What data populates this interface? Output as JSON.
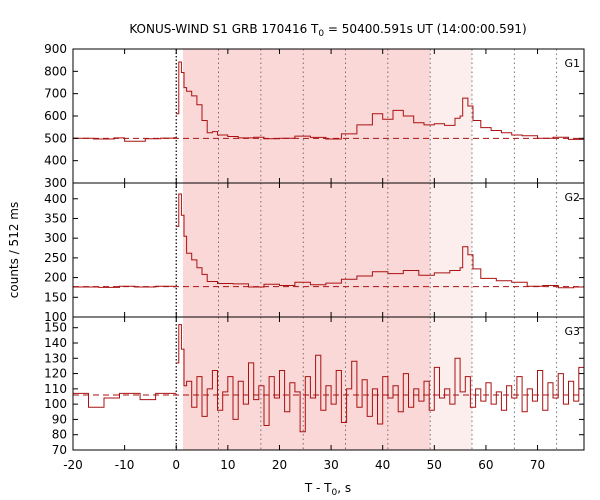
{
  "chart_data": {
    "type": "line",
    "title": {
      "prefix": "KONUS-WIND S1 GRB 170416 T",
      "sub": "0",
      "suffix": " = 50400.591s UT (14:00:00.591)"
    },
    "xlabel": {
      "prefix": "T - T",
      "sub": "0",
      "suffix": ", s"
    },
    "ylabel": "counts / 512 ms",
    "xlim": [
      -20,
      79
    ],
    "x_ticks": [
      -20,
      -10,
      0,
      10,
      20,
      30,
      40,
      50,
      60,
      70
    ],
    "t_zero": 0,
    "dotted_lines_x": [
      0,
      8.2,
      16.4,
      24.6,
      32.8,
      41.0,
      49.2,
      57.3,
      65.5,
      73.7
    ],
    "shaded_regions": [
      {
        "x0": 1.3,
        "x1": 49.2,
        "color": "#fbd8d8"
      },
      {
        "x0": 49.2,
        "x1": 57.3,
        "color": "#fdeeee"
      }
    ],
    "line_color": "#aa1111",
    "panels": [
      {
        "label": "G1",
        "ylim": [
          300,
          900
        ],
        "y_ticks": [
          300,
          400,
          500,
          600,
          700,
          800,
          900
        ],
        "background": 500,
        "pre_trigger": [
          [
            -20,
            500
          ],
          [
            -16,
            497
          ],
          [
            -12,
            502
          ],
          [
            -10,
            487
          ],
          [
            -6,
            498
          ],
          [
            -3,
            501
          ],
          [
            -0.5,
            503
          ]
        ],
        "series": [
          [
            0,
            610
          ],
          [
            0.5,
            842
          ],
          [
            1,
            795
          ],
          [
            1.5,
            727
          ],
          [
            2,
            711
          ],
          [
            3,
            690
          ],
          [
            4,
            650
          ],
          [
            5,
            580
          ],
          [
            6,
            525
          ],
          [
            7,
            530
          ],
          [
            8,
            515
          ],
          [
            10,
            508
          ],
          [
            12,
            502
          ],
          [
            15,
            505
          ],
          [
            17,
            498
          ],
          [
            20,
            500
          ],
          [
            23,
            510
          ],
          [
            26,
            504
          ],
          [
            29,
            497
          ],
          [
            32,
            520
          ],
          [
            35,
            560
          ],
          [
            38,
            610
          ],
          [
            40,
            585
          ],
          [
            42,
            625
          ],
          [
            44,
            600
          ],
          [
            46,
            570
          ],
          [
            48,
            560
          ],
          [
            50,
            565
          ],
          [
            52,
            558
          ],
          [
            54,
            590
          ],
          [
            55,
            600
          ],
          [
            55.5,
            680
          ],
          [
            56.5,
            645
          ],
          [
            57.5,
            580
          ],
          [
            59,
            548
          ],
          [
            61,
            535
          ],
          [
            63,
            525
          ],
          [
            65,
            515
          ],
          [
            67,
            512
          ],
          [
            70,
            500
          ],
          [
            73,
            505
          ],
          [
            76,
            495
          ],
          [
            79,
            490
          ]
        ]
      },
      {
        "label": "G2",
        "ylim": [
          100,
          440
        ],
        "y_ticks": [
          100,
          150,
          200,
          250,
          300,
          350,
          400
        ],
        "background": 177,
        "pre_trigger": [
          [
            -20,
            176
          ],
          [
            -15,
            175
          ],
          [
            -11,
            178
          ],
          [
            -8,
            176
          ],
          [
            -4,
            178
          ],
          [
            -0.5,
            177
          ]
        ],
        "series": [
          [
            0,
            330
          ],
          [
            0.5,
            412
          ],
          [
            1,
            358
          ],
          [
            1.5,
            305
          ],
          [
            2,
            262
          ],
          [
            3,
            245
          ],
          [
            4,
            225
          ],
          [
            5,
            208
          ],
          [
            6,
            190
          ],
          [
            8,
            185
          ],
          [
            11,
            184
          ],
          [
            14,
            176
          ],
          [
            17,
            183
          ],
          [
            20,
            180
          ],
          [
            23,
            188
          ],
          [
            26,
            182
          ],
          [
            29,
            186
          ],
          [
            32,
            196
          ],
          [
            35,
            204
          ],
          [
            38,
            215
          ],
          [
            41,
            210
          ],
          [
            44,
            218
          ],
          [
            47,
            206
          ],
          [
            50,
            212
          ],
          [
            53,
            218
          ],
          [
            55,
            225
          ],
          [
            55.5,
            278
          ],
          [
            56.5,
            258
          ],
          [
            57.5,
            222
          ],
          [
            59,
            198
          ],
          [
            62,
            192
          ],
          [
            65,
            188
          ],
          [
            68,
            178
          ],
          [
            71,
            180
          ],
          [
            74,
            174
          ],
          [
            77,
            176
          ],
          [
            79,
            172
          ]
        ]
      },
      {
        "label": "G3",
        "ylim": [
          70,
          157
        ],
        "y_ticks": [
          70,
          80,
          90,
          100,
          110,
          120,
          130,
          140,
          150
        ],
        "background": 106,
        "pre_trigger": [
          [
            -20,
            107
          ],
          [
            -17,
            98
          ],
          [
            -14,
            104
          ],
          [
            -11,
            107
          ],
          [
            -7,
            103
          ],
          [
            -4,
            107
          ],
          [
            -0.5,
            107
          ]
        ],
        "series": [
          [
            0,
            127
          ],
          [
            0.5,
            152
          ],
          [
            1,
            136
          ],
          [
            1.5,
            112
          ],
          [
            2,
            115
          ],
          [
            3,
            98
          ],
          [
            4,
            118
          ],
          [
            5,
            92
          ],
          [
            6,
            110
          ],
          [
            7,
            122
          ],
          [
            8,
            96
          ],
          [
            9,
            108
          ],
          [
            10,
            118
          ],
          [
            11,
            90
          ],
          [
            12,
            115
          ],
          [
            13,
            100
          ],
          [
            14,
            127
          ],
          [
            15,
            103
          ],
          [
            16,
            112
          ],
          [
            17,
            86
          ],
          [
            18,
            118
          ],
          [
            19,
            104
          ],
          [
            20,
            122
          ],
          [
            21,
            95
          ],
          [
            22,
            114
          ],
          [
            23,
            108
          ],
          [
            24,
            82
          ],
          [
            25,
            118
          ],
          [
            26,
            104
          ],
          [
            27,
            132
          ],
          [
            28,
            96
          ],
          [
            29,
            112
          ],
          [
            30,
            100
          ],
          [
            31,
            122
          ],
          [
            32,
            88
          ],
          [
            33,
            110
          ],
          [
            34,
            128
          ],
          [
            35,
            98
          ],
          [
            36,
            116
          ],
          [
            37,
            92
          ],
          [
            38,
            110
          ],
          [
            39,
            87
          ],
          [
            40,
            118
          ],
          [
            41,
            104
          ],
          [
            42,
            112
          ],
          [
            43,
            95
          ],
          [
            44,
            120
          ],
          [
            45,
            98
          ],
          [
            46,
            110
          ],
          [
            47,
            102
          ],
          [
            48,
            115
          ],
          [
            49,
            96
          ],
          [
            50,
            124
          ],
          [
            51,
            104
          ],
          [
            52,
            110
          ],
          [
            53,
            100
          ],
          [
            54,
            130
          ],
          [
            55,
            108
          ],
          [
            56,
            118
          ],
          [
            57,
            98
          ],
          [
            58,
            110
          ],
          [
            59,
            102
          ],
          [
            60,
            114
          ],
          [
            61,
            100
          ],
          [
            62,
            108
          ],
          [
            63,
            96
          ],
          [
            64,
            112
          ],
          [
            65,
            104
          ],
          [
            66,
            118
          ],
          [
            67,
            95
          ],
          [
            68,
            110
          ],
          [
            69,
            102
          ],
          [
            70,
            122
          ],
          [
            71,
            96
          ],
          [
            72,
            114
          ],
          [
            73,
            104
          ],
          [
            74,
            120
          ],
          [
            75,
            100
          ],
          [
            76,
            115
          ],
          [
            77,
            102
          ],
          [
            78,
            124
          ],
          [
            79,
            106
          ]
        ]
      }
    ]
  }
}
